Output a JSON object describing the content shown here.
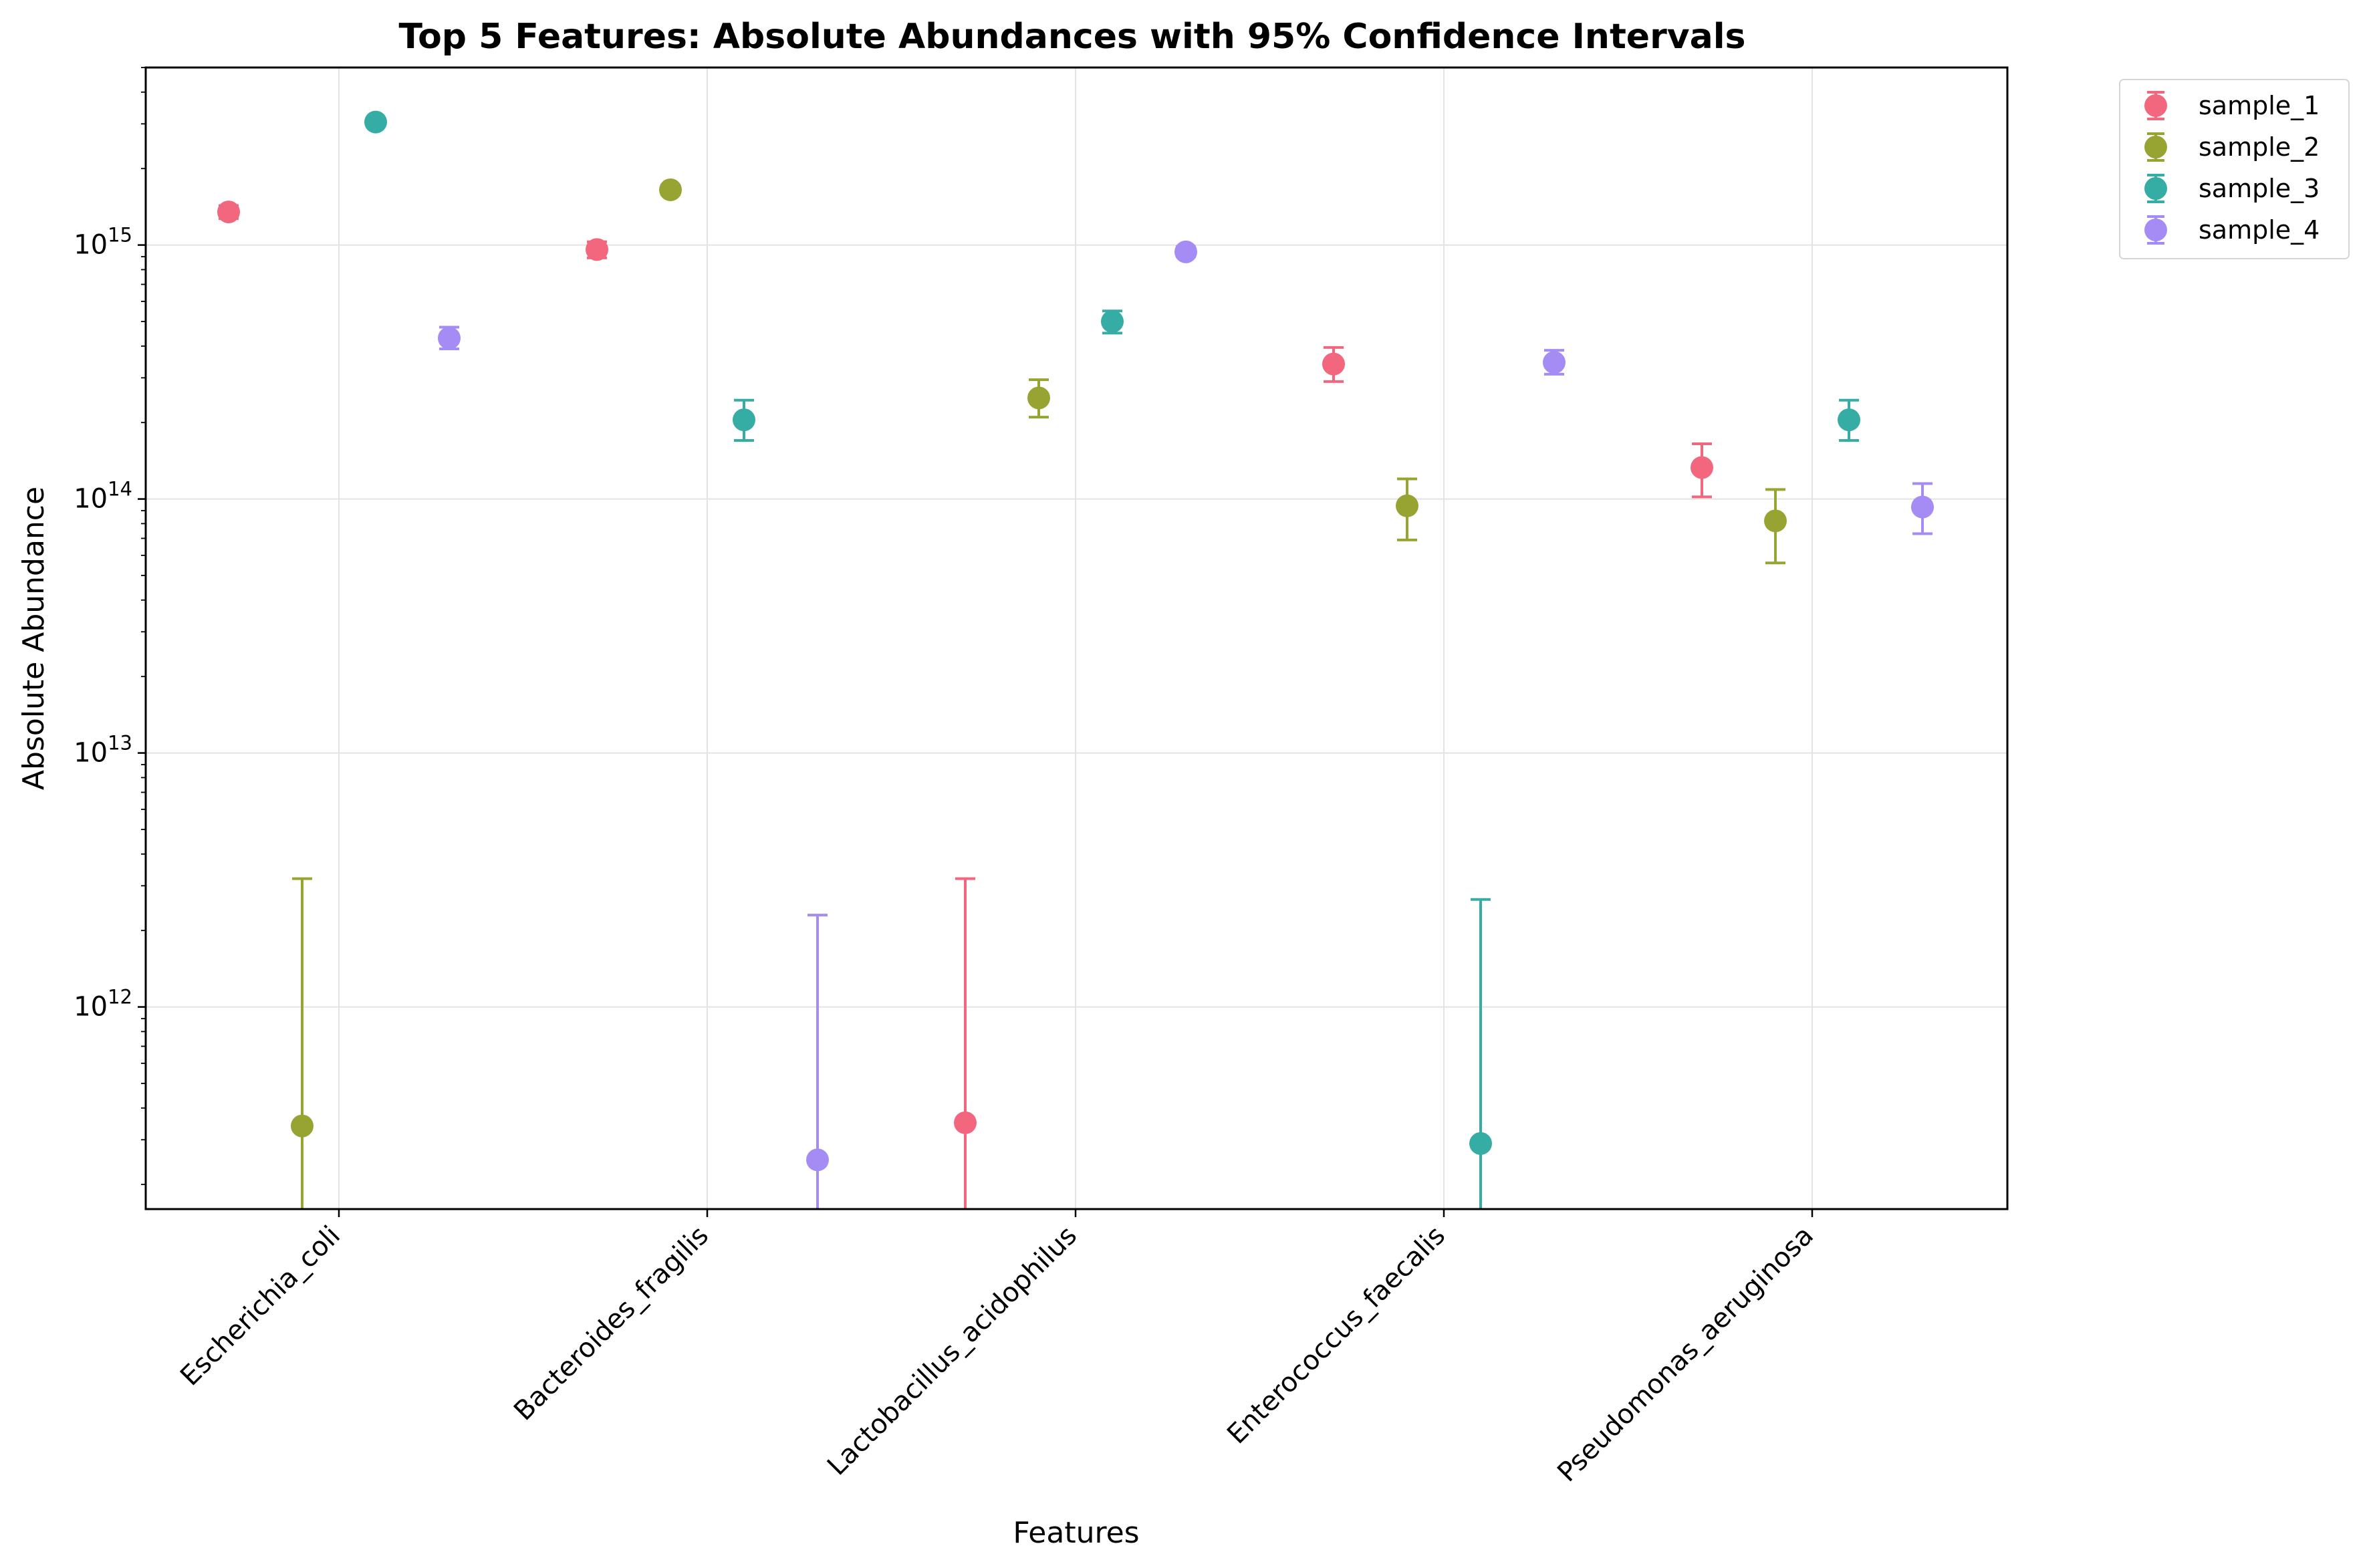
{
  "chart_data": {
    "type": "scatter",
    "title": "Top 5 Features: Absolute Abundances with 95% Confidence Intervals",
    "xlabel": "Features",
    "ylabel": "Absolute Abundance",
    "yscale": "log",
    "ylim": [
      160000000000.0,
      5000000000000000.0
    ],
    "y_ticks": [
      {
        "value": 1000000000000.0,
        "base": "10",
        "exp": "12"
      },
      {
        "value": 10000000000000.0,
        "base": "10",
        "exp": "13"
      },
      {
        "value": 100000000000000.0,
        "base": "10",
        "exp": "14"
      },
      {
        "value": 1000000000000000.0,
        "base": "10",
        "exp": "15"
      }
    ],
    "categories": [
      "Escherichia_coli",
      "Bacteroides_fragilis",
      "Lactobacillus_acidophilus",
      "Enterococcus_faecalis",
      "Pseudomonas_aeruginosa"
    ],
    "grid": true,
    "legend_position": "outside upper right",
    "error_bars": "95% confidence interval",
    "series": [
      {
        "name": "sample_1",
        "color": "#f2677e",
        "values": [
          1350000000000000.0,
          960000000000000.0,
          350000000000.0,
          340000000000000.0,
          133000000000000.0
        ],
        "ci_low": [
          1270000000000000.0,
          890000000000000.0,
          100000000000.0,
          290000000000000.0,
          102000000000000.0
        ],
        "ci_high": [
          1430000000000000.0,
          1030000000000000.0,
          3200000000000.0,
          395000000000000.0,
          165000000000000.0
        ]
      },
      {
        "name": "sample_2",
        "color": "#97a431",
        "values": [
          340000000000.0,
          1650000000000000.0,
          250000000000000.0,
          94000000000000.0,
          82000000000000.0
        ],
        "ci_low": [
          100000000000.0,
          1580000000000000.0,
          210000000000000.0,
          69000000000000.0,
          56000000000000.0
        ],
        "ci_high": [
          3200000000000.0,
          1720000000000000.0,
          295000000000000.0,
          120000000000000.0,
          109000000000000.0
        ]
      },
      {
        "name": "sample_3",
        "color": "#36ada4",
        "values": [
          3050000000000000.0,
          205000000000000.0,
          500000000000000.0,
          290000000000.0,
          205000000000000.0
        ],
        "ci_low": [
          2950000000000000.0,
          170000000000000.0,
          450000000000000.0,
          100000000000.0,
          170000000000000.0
        ],
        "ci_high": [
          3150000000000000.0,
          245000000000000.0,
          550000000000000.0,
          2650000000000.0,
          245000000000000.0
        ]
      },
      {
        "name": "sample_4",
        "color": "#a48cf4",
        "values": [
          430000000000000.0,
          250000000000.0,
          940000000000000.0,
          345000000000000.0,
          93000000000000.0
        ],
        "ci_low": [
          390000000000000.0,
          100000000000.0,
          900000000000000.0,
          310000000000000.0,
          73000000000000.0
        ],
        "ci_high": [
          475000000000000.0,
          2300000000000.0,
          985000000000000.0,
          385000000000000.0,
          115000000000000.0
        ]
      }
    ]
  }
}
